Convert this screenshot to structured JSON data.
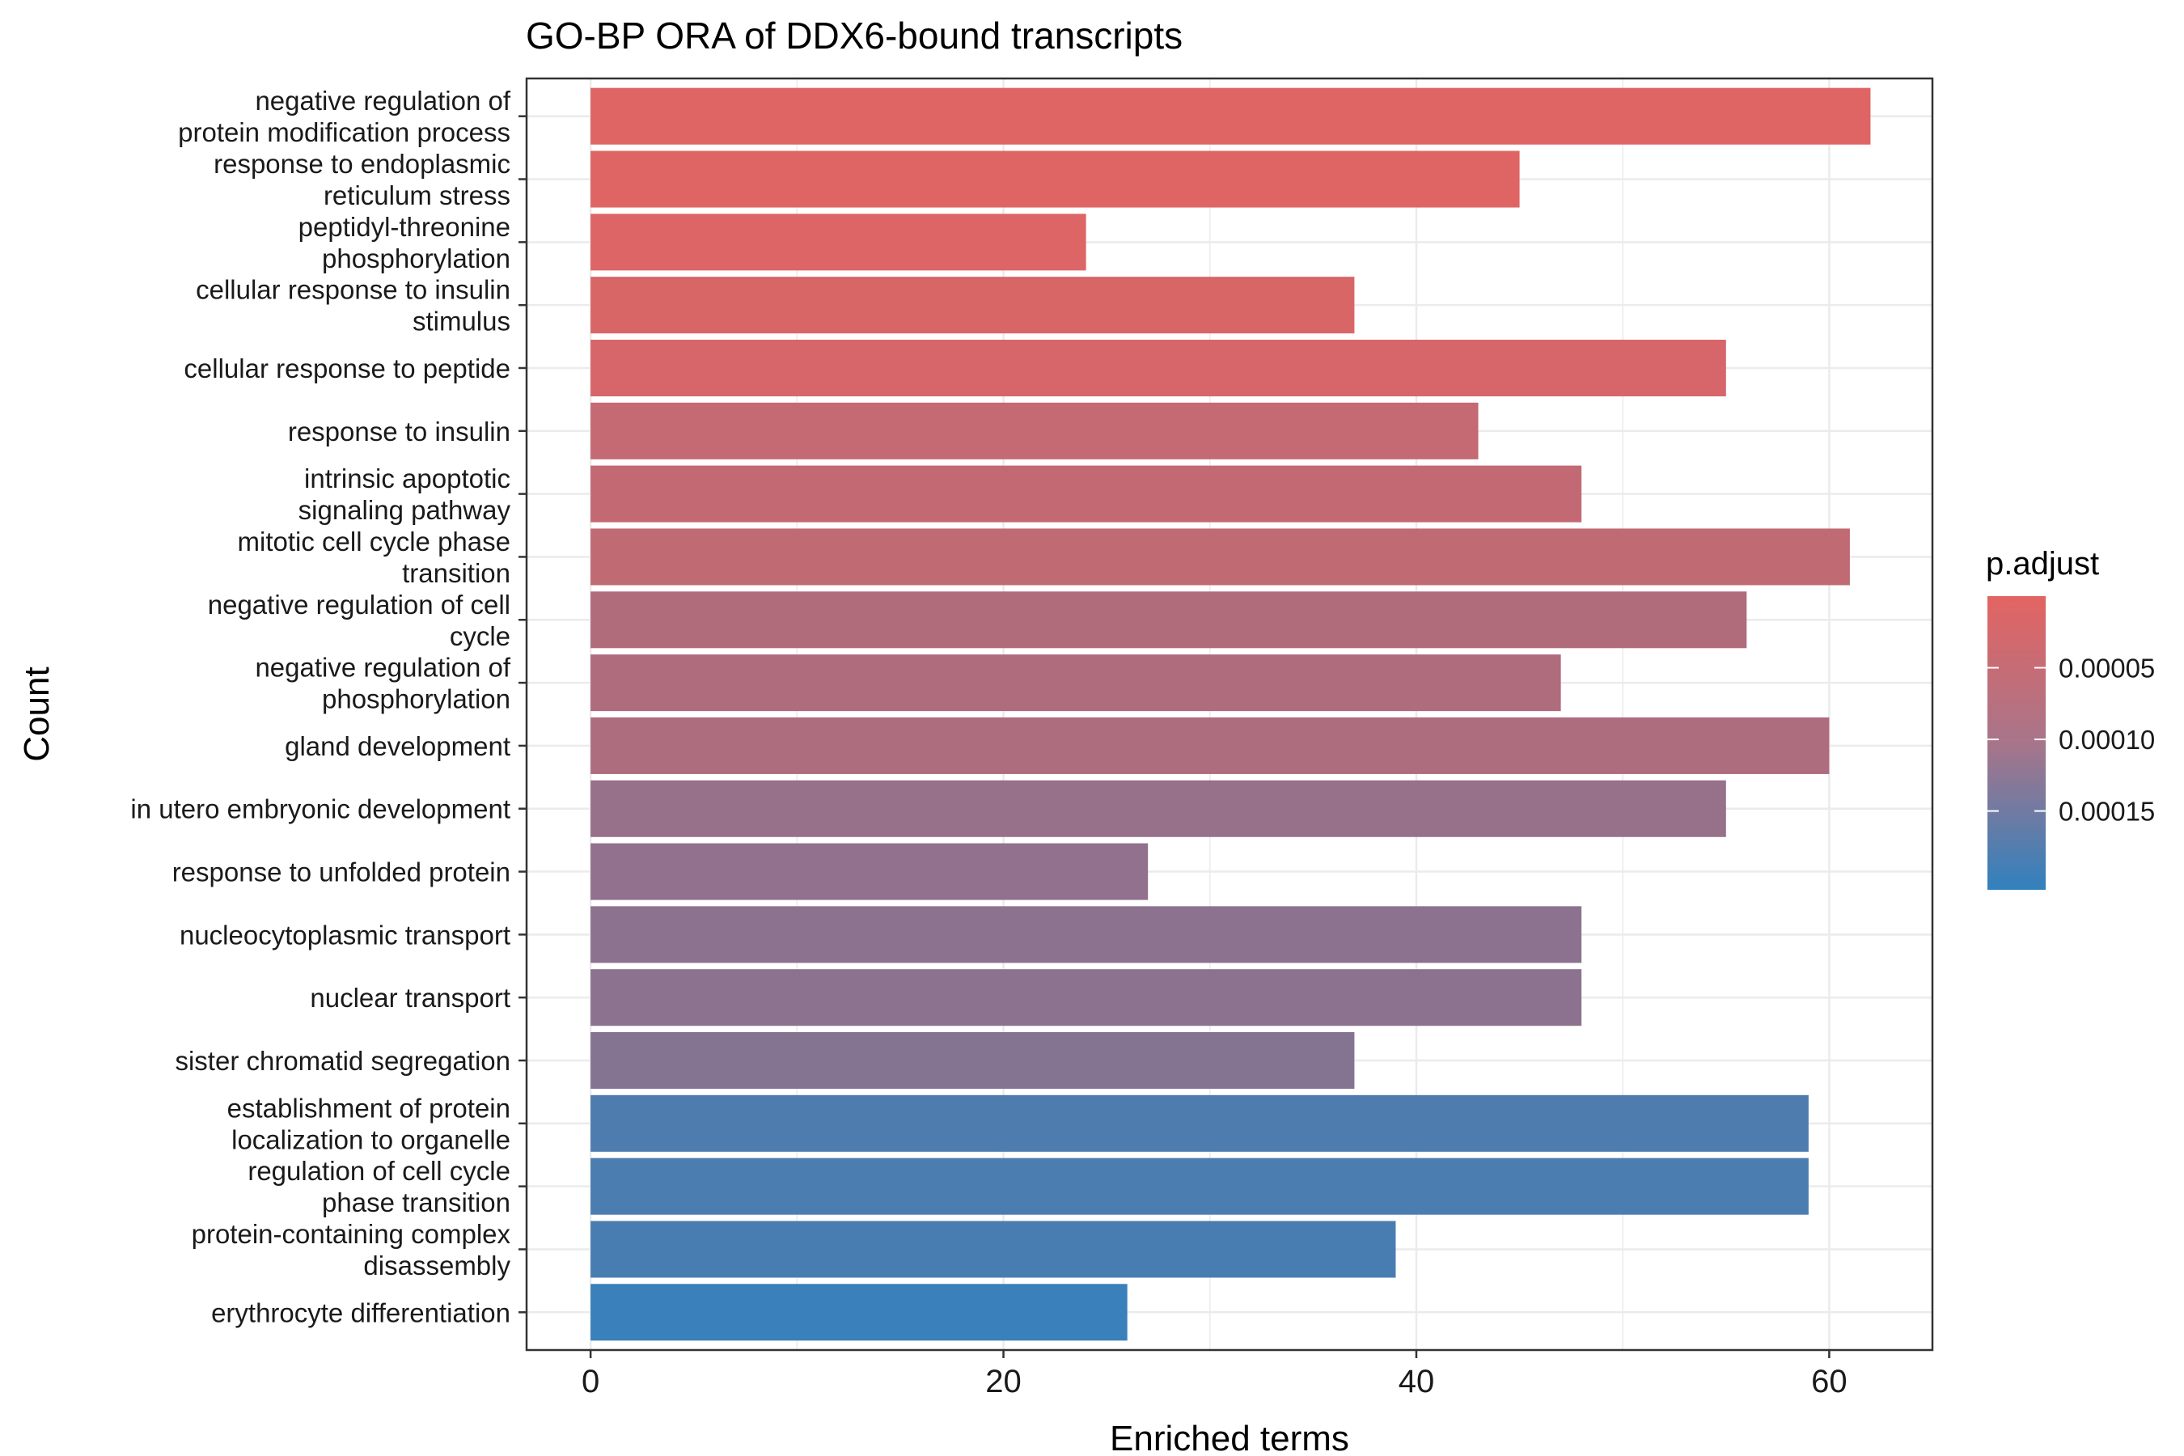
{
  "chart_data": {
    "type": "bar",
    "orientation": "horizontal",
    "title": "GO-BP ORA of DDX6-bound transcripts",
    "xlabel": "Enriched terms",
    "ylabel": "Count",
    "xlim": [
      -3.1,
      65
    ],
    "x_ticks": [
      0,
      20,
      40,
      60
    ],
    "grid": true,
    "categories": [
      [
        "negative regulation of",
        "protein modification process"
      ],
      [
        "response to endoplasmic",
        "reticulum stress"
      ],
      [
        "peptidyl-threonine",
        "phosphorylation"
      ],
      [
        "cellular response to insulin",
        "stimulus"
      ],
      [
        "cellular response to peptide"
      ],
      [
        "response to insulin"
      ],
      [
        "intrinsic apoptotic",
        "signaling pathway"
      ],
      [
        "mitotic cell cycle phase",
        "transition"
      ],
      [
        "negative regulation of cell",
        "cycle"
      ],
      [
        "negative regulation of",
        "phosphorylation"
      ],
      [
        "gland development"
      ],
      [
        "in utero embryonic development"
      ],
      [
        "response to unfolded protein"
      ],
      [
        "nucleocytoplasmic transport"
      ],
      [
        "nuclear transport"
      ],
      [
        "sister chromatid segregation"
      ],
      [
        "establishment of protein",
        "localization to organelle"
      ],
      [
        "regulation of cell cycle",
        "phase transition"
      ],
      [
        "protein-containing complex",
        "disassembly"
      ],
      [
        "erythrocyte differentiation"
      ]
    ],
    "values": [
      62,
      45,
      24,
      37,
      55,
      43,
      48,
      61,
      56,
      47,
      60,
      55,
      27,
      48,
      48,
      37,
      59,
      59,
      39,
      26
    ],
    "p_adjust": [
      5e-06,
      5e-06,
      6e-06,
      1.1e-05,
      1.5e-05,
      3.5e-05,
      3.8e-05,
      4e-05,
      5.8e-05,
      6e-05,
      6.2e-05,
      8.8e-05,
      9.5e-05,
      0.0001,
      0.0001,
      0.000108,
      0.000172,
      0.000175,
      0.000178,
      0.000195
    ],
    "legend": {
      "title": "p.adjust",
      "position": "right",
      "range": [
        0.0,
        0.000205
      ],
      "ticks": [
        5e-05,
        0.0001,
        0.00015
      ],
      "tick_labels": [
        "0.00005",
        "0.00010",
        "0.00015"
      ],
      "color_low": "#e36462",
      "color_high": "#3181be"
    }
  }
}
